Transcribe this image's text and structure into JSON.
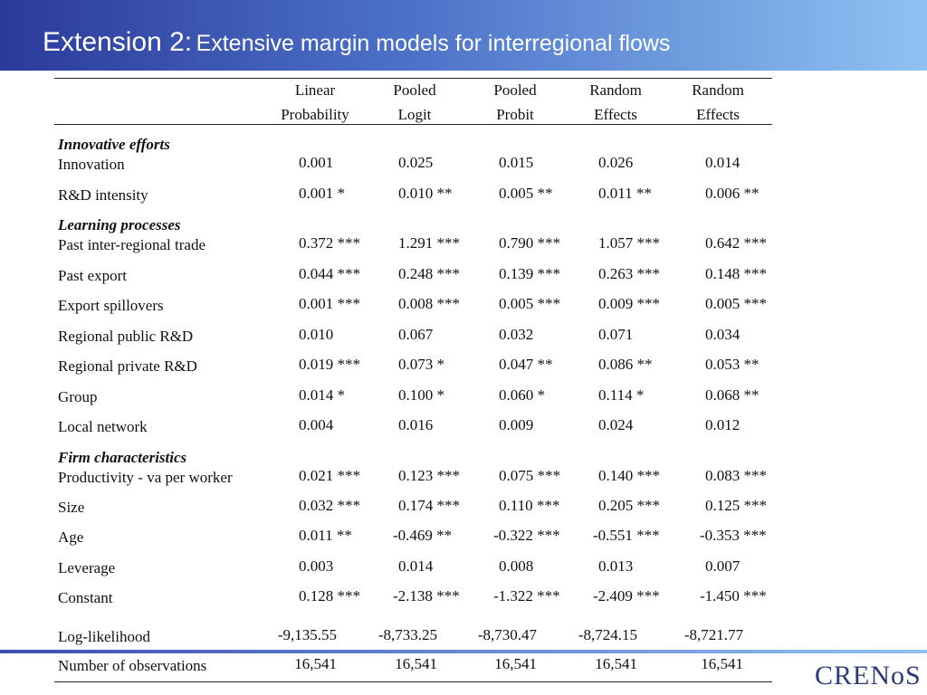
{
  "header": {
    "title_lead": "Extension 2:",
    "title": "Extensive margin models for interregional flows"
  },
  "table": {
    "columns": [
      [
        "Linear",
        "Probability"
      ],
      [
        "Pooled",
        "Logit"
      ],
      [
        "Pooled",
        "Probit"
      ],
      [
        "Random",
        "Effects"
      ],
      [
        "Random",
        "Effects"
      ]
    ],
    "sections": [
      {
        "title": "Innovative efforts",
        "rows": [
          [
            "Innovation",
            "0.001",
            "0.025",
            "0.015",
            "0.026",
            "0.014"
          ],
          [
            "R&D intensity",
            "0.001 *",
            "0.010 **",
            "0.005 **",
            "0.011 **",
            "0.006 **"
          ]
        ]
      },
      {
        "title": "Learning processes",
        "rows": [
          [
            "Past inter-regional trade",
            "0.372 ***",
            "1.291 ***",
            "0.790 ***",
            "1.057 ***",
            "0.642 ***"
          ],
          [
            "Past export",
            "0.044 ***",
            "0.248 ***",
            "0.139 ***",
            "0.263 ***",
            "0.148 ***"
          ],
          [
            "Export spillovers",
            "0.001 ***",
            "0.008 ***",
            "0.005 ***",
            "0.009 ***",
            "0.005 ***"
          ],
          [
            "Regional public R&D",
            "0.010",
            "0.067",
            "0.032",
            "0.071",
            "0.034"
          ],
          [
            "Regional private R&D",
            "0.019 ***",
            "0.073 *",
            "0.047 **",
            "0.086 **",
            "0.053 **"
          ],
          [
            "Group",
            "0.014 *",
            "0.100 *",
            "0.060 *",
            "0.114 *",
            "0.068 **"
          ],
          [
            "Local network",
            "0.004",
            "0.016",
            "0.009",
            "0.024",
            "0.012"
          ]
        ]
      },
      {
        "title": "Firm characteristics",
        "rows": [
          [
            "Productivity - va per worker",
            "0.021 ***",
            "0.123 ***",
            "0.075 ***",
            "0.140 ***",
            "0.083 ***"
          ],
          [
            "Size",
            "0.032 ***",
            "0.174 ***",
            "0.110 ***",
            "0.205 ***",
            "0.125 ***"
          ],
          [
            "Age",
            "0.011 **",
            "-0.469 **",
            "-0.322 ***",
            "-0.551 ***",
            "-0.353 ***"
          ],
          [
            "Leverage",
            "0.003",
            "0.014",
            "0.008",
            "0.013",
            "0.007"
          ],
          [
            "Constant",
            "0.128 ***",
            "-2.138 ***",
            "-1.322 ***",
            "-2.409 ***",
            "-1.450 ***"
          ]
        ]
      }
    ],
    "summary_rows": [
      [
        "Log-likelihood",
        "-9,135.55",
        "-8,733.25",
        "-8,730.47",
        "-8,724.15",
        "-8,721.77"
      ],
      [
        "Number of observations",
        "16,541",
        "16,541",
        "16,541",
        "16,541",
        "16,541"
      ]
    ]
  },
  "logo": "CRENoS"
}
